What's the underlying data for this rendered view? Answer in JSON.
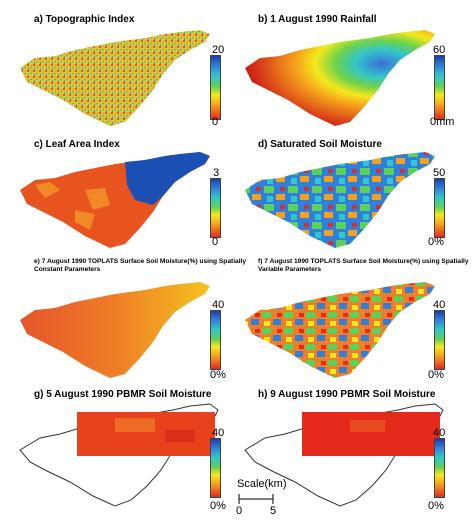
{
  "panels": [
    {
      "title": "a) Topographic Index",
      "cb_max": "20",
      "cb_min": "0"
    },
    {
      "title": "b) 1 August 1990 Rainfall",
      "cb_max": "60",
      "cb_min": "0mm"
    },
    {
      "title": "c) Leaf Area Index",
      "cb_max": "3",
      "cb_min": "0"
    },
    {
      "title": "d) Saturated Soil Moisture",
      "cb_max": "50",
      "cb_min": "0%"
    },
    {
      "title": "e) 7 August 1990 TOPLATS Surface Soil Moisture(%) using Spatially Constant Parameters",
      "cb_max": "40",
      "cb_min": "0%"
    },
    {
      "title": "f) 7 August 1990 TOPLATS Surface Soil Moisture(%) using Spatially Variable Parameters",
      "cb_max": "40",
      "cb_min": "0%"
    },
    {
      "title": "g) 5 August 1990 PBMR Soil Moisture",
      "cb_max": "40",
      "cb_min": "0%"
    },
    {
      "title": "h) 9 August 1990 PBMR Soil Moisture",
      "cb_max": "40",
      "cb_min": "0%"
    }
  ],
  "scale": {
    "label": "Scale(km)",
    "zero": "0",
    "five": "5"
  },
  "colors": {
    "blue": "#1b3fa6",
    "cyan": "#33c6c9",
    "green": "#5bd15a",
    "yellow": "#f4e91d",
    "orange": "#f6a11b",
    "red": "#e42a1b"
  }
}
